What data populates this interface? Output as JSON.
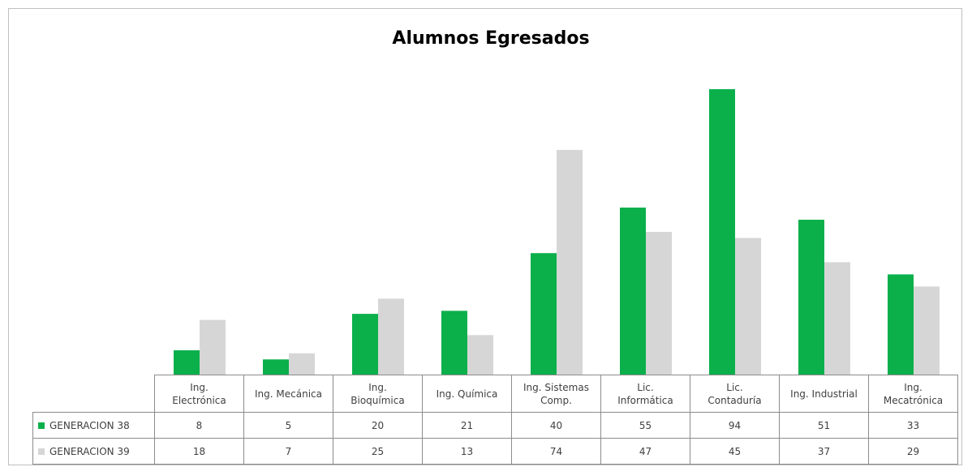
{
  "chart_data": {
    "type": "bar",
    "title": "Alumnos Egresados",
    "categories": [
      "Ing.\nElectrónica",
      "Ing. Mecánica",
      "Ing.\nBioquímica",
      "Ing. Química",
      "Ing. Sistemas\nComp.",
      "Lic.\nInformática",
      "Lic.\nContaduría",
      "Ing. Industrial",
      "Ing.\nMecatrónica"
    ],
    "series": [
      {
        "name": "GENERACION 38",
        "color": "#0bb04b",
        "values": [
          8,
          5,
          20,
          21,
          40,
          55,
          94,
          51,
          33
        ]
      },
      {
        "name": "GENERACION 39",
        "color": "#d6d6d6",
        "values": [
          18,
          7,
          25,
          13,
          74,
          47,
          45,
          37,
          29
        ]
      }
    ],
    "data_table": true
  }
}
